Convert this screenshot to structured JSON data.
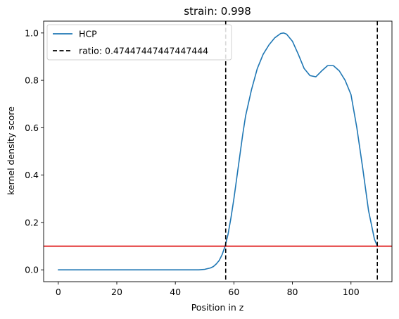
{
  "chart_data": {
    "type": "line",
    "title": "strain: 0.998",
    "xlabel": "Position in z",
    "ylabel": "kernel density score",
    "xlim": [
      -5,
      114
    ],
    "ylim": [
      -0.05,
      1.05
    ],
    "xticks": [
      0,
      20,
      40,
      60,
      80,
      100
    ],
    "yticks": [
      0.0,
      0.2,
      0.4,
      0.6,
      0.8,
      1.0
    ],
    "xtick_labels": [
      "0",
      "20",
      "40",
      "60",
      "80",
      "100"
    ],
    "ytick_labels": [
      "0.0",
      "0.2",
      "0.4",
      "0.6",
      "0.8",
      "1.0"
    ],
    "grid": false,
    "legend_position": "top-left",
    "series": [
      {
        "name": "HCP",
        "color": "#1f77b4",
        "style": "solid",
        "x": [
          0,
          10,
          20,
          30,
          40,
          45,
          48,
          50,
          52,
          53,
          54,
          55,
          56,
          57,
          58,
          59,
          60,
          61,
          62,
          63,
          64,
          66,
          68,
          70,
          72,
          74,
          76,
          77,
          78,
          80,
          82,
          84,
          86,
          88,
          90,
          92,
          94,
          96,
          98,
          100,
          102,
          104,
          106,
          108,
          109
        ],
        "y": [
          0.0,
          0.0,
          0.0,
          0.0,
          0.0,
          0.0,
          0.0,
          0.002,
          0.008,
          0.014,
          0.025,
          0.04,
          0.065,
          0.1,
          0.15,
          0.22,
          0.3,
          0.39,
          0.48,
          0.57,
          0.65,
          0.76,
          0.85,
          0.91,
          0.95,
          0.98,
          0.998,
          1.0,
          0.995,
          0.965,
          0.91,
          0.85,
          0.82,
          0.815,
          0.84,
          0.862,
          0.862,
          0.84,
          0.8,
          0.74,
          0.6,
          0.43,
          0.25,
          0.13,
          0.1
        ]
      }
    ],
    "vlines": [
      {
        "x": 57.2,
        "color": "#000000",
        "style": "dashed",
        "label": "ratio: 0.47447447447447444"
      },
      {
        "x": 109.0,
        "color": "#000000",
        "style": "dashed",
        "label": ""
      }
    ],
    "hlines": [
      {
        "y": 0.1,
        "color": "#dd0000",
        "style": "solid"
      }
    ],
    "legend": [
      {
        "label": "HCP",
        "color": "#1f77b4",
        "style": "solid"
      },
      {
        "label": "ratio: 0.47447447447447444",
        "color": "#000000",
        "style": "dashed"
      }
    ]
  }
}
